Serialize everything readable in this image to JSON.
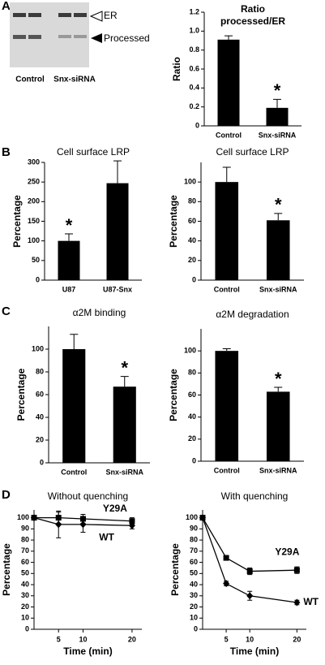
{
  "panels": [
    "A",
    "B",
    "C",
    "D"
  ],
  "blot": {
    "bands": [
      "ER",
      "Processed"
    ],
    "lanes": [
      "Control",
      "Snx-siRNA"
    ]
  },
  "chart_data": [
    {
      "type": "bar",
      "title": [
        "Ratio",
        "processed/ER"
      ],
      "ylabel": "Ratio",
      "categories": [
        "Control",
        "Snx-siRNA"
      ],
      "values": [
        0.91,
        0.19
      ],
      "errors": [
        0.04,
        0.09
      ],
      "stars": [
        null,
        "*"
      ],
      "color": "#000000",
      "ylim": [
        0,
        1.2
      ],
      "yticks": [
        0,
        0.2,
        0.4,
        0.6,
        0.8,
        {
          "value": 1,
          "label": "1.0"
        },
        1.2
      ]
    },
    {
      "type": "bar",
      "title": [
        "Cell surface LRP"
      ],
      "ylabel": "Percentage",
      "categories": [
        "U87",
        "U87-Snx"
      ],
      "values": [
        100,
        247
      ],
      "errors": [
        18,
        57
      ],
      "stars": [
        "*",
        null
      ],
      "color": "#000000",
      "ylim": [
        0,
        300
      ],
      "yticks": [
        0,
        50,
        100,
        150,
        200,
        250,
        300
      ]
    },
    {
      "type": "bar",
      "title": [
        "Cell surface LRP"
      ],
      "ylabel": "Percentage",
      "categories": [
        "Control",
        "Snx-siRNA"
      ],
      "values": [
        100,
        61
      ],
      "errors": [
        15,
        7
      ],
      "stars": [
        null,
        "*"
      ],
      "color": "#000000",
      "ylim": [
        0,
        120
      ],
      "yticks": [
        0,
        20,
        40,
        60,
        80,
        100
      ]
    },
    {
      "type": "bar",
      "title": [
        "α2M binding"
      ],
      "ylabel": "Percentage",
      "categories": [
        "Control",
        "Snx-siRNA"
      ],
      "values": [
        100,
        67
      ],
      "errors": [
        13,
        9
      ],
      "stars": [
        null,
        "*"
      ],
      "color": "#000000",
      "ylim": [
        0,
        120
      ],
      "yticks": [
        0,
        20,
        40,
        60,
        80,
        100
      ]
    },
    {
      "type": "bar",
      "title": [
        "α2M degradation"
      ],
      "ylabel": "Percentage",
      "categories": [
        "Control",
        "Snx-siRNA"
      ],
      "values": [
        100,
        63
      ],
      "errors": [
        2,
        4
      ],
      "stars": [
        null,
        "*"
      ],
      "color": "#000000",
      "ylim": [
        0,
        120
      ],
      "yticks": [
        0,
        20,
        40,
        60,
        80,
        100
      ]
    },
    {
      "type": "line",
      "title": [
        "Without quenching"
      ],
      "ylabel": "Percentage",
      "xlabel": "Time (min)",
      "x": [
        0,
        5,
        10,
        20
      ],
      "xlim": [
        0,
        22
      ],
      "xticks": [
        5,
        10,
        20
      ],
      "ylim": [
        0,
        107
      ],
      "yticks": [
        0,
        10,
        20,
        30,
        40,
        50,
        60,
        70,
        80,
        90,
        100
      ],
      "series": [
        {
          "name": "Y29A",
          "color": "#000000",
          "marker": "square",
          "values": [
            100,
            100,
            99,
            97
          ],
          "errors": [
            2,
            5,
            4,
            3
          ]
        },
        {
          "name": "WT",
          "color": "#000000",
          "marker": "diamond",
          "values": [
            100,
            94,
            94,
            93
          ],
          "errors": [
            2,
            12,
            7,
            3
          ]
        }
      ]
    },
    {
      "type": "line",
      "title": [
        "With quenching"
      ],
      "ylabel": "Percentage",
      "xlabel": "Time (min)",
      "x": [
        0,
        5,
        10,
        20
      ],
      "xlim": [
        0,
        22
      ],
      "xticks": [
        5,
        10,
        20
      ],
      "ylim": [
        0,
        107
      ],
      "yticks": [
        0,
        10,
        20,
        30,
        40,
        50,
        60,
        70,
        80,
        90,
        100
      ],
      "series": [
        {
          "name": "Y29A",
          "color": "#000000",
          "marker": "square",
          "values": [
            100,
            64,
            52,
            53
          ],
          "errors": [
            2,
            2,
            3,
            3
          ]
        },
        {
          "name": "WT",
          "color": "#000000",
          "marker": "diamond",
          "values": [
            100,
            41,
            30,
            24
          ],
          "errors": [
            2,
            2,
            4,
            2
          ]
        }
      ]
    }
  ]
}
